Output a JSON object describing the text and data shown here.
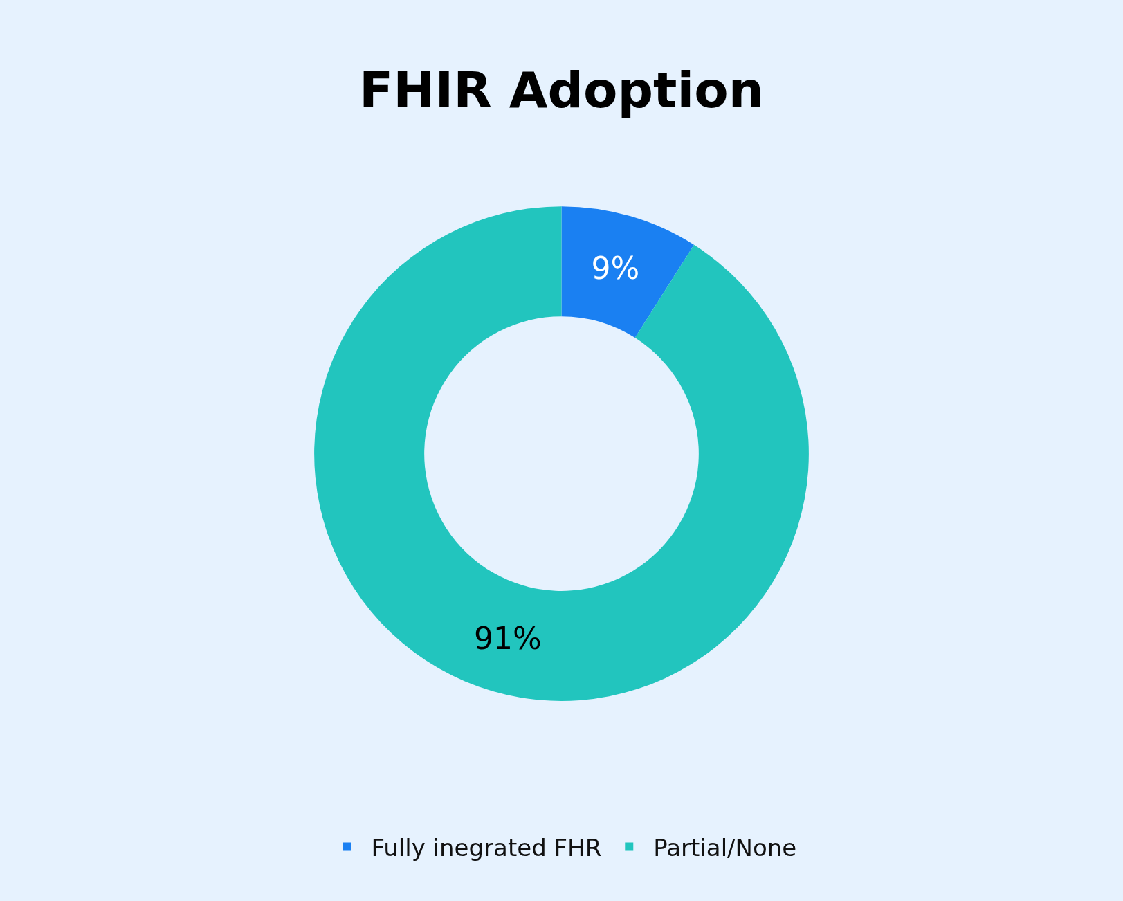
{
  "chart_data": {
    "type": "donut",
    "title": "FHIR Adoption",
    "categories": [
      "Fully inegrated FHR",
      "Partial/None"
    ],
    "values": [
      9,
      91
    ],
    "value_labels": [
      "9%",
      "91%"
    ],
    "colors": [
      "#1a80f2",
      "#22c5be"
    ],
    "legend": "bottom"
  }
}
